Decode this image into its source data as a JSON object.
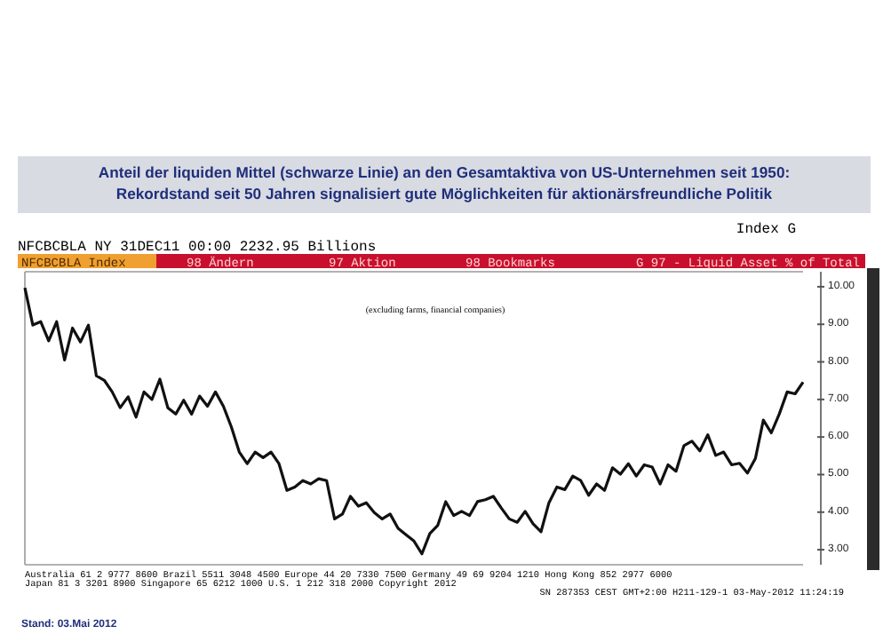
{
  "chart_data": {
    "type": "line",
    "title": "Anteil der liquiden Mittel (schwarze Linie) an den Gesamtaktiva von US-Unternehmen seit 1950:\nRekordstand seit 50 Jahren signalisiert gute Möglichkeiten für aktionärsfreundliche Politik",
    "subtitle": "G 97 - Liquid Asset % of Total",
    "categories": [
      null,
      null,
      null,
      null,
      null,
      null,
      null,
      null,
      null,
      null,
      null,
      null,
      null,
      null,
      null,
      null,
      null,
      null,
      null,
      null,
      null,
      null,
      null,
      null,
      null,
      null,
      null,
      null,
      null,
      null,
      null,
      null,
      null,
      null,
      null,
      null,
      null,
      null,
      null,
      null,
      null,
      null,
      null,
      null,
      null,
      null,
      null,
      null,
      null,
      null,
      null,
      null,
      null,
      null,
      null,
      null,
      null,
      null,
      null,
      null,
      null,
      null,
      null,
      null,
      null,
      null,
      null,
      null,
      null,
      null,
      null,
      null,
      null,
      null,
      null,
      null,
      null,
      null,
      null,
      null,
      null,
      null,
      null,
      null,
      null,
      null,
      null,
      null,
      null,
      null,
      null,
      null,
      null,
      null,
      null,
      null,
      null,
      null,
      null
    ],
    "series": [
      {
        "color": "#111111",
        "values": [
          9.97,
          8.98,
          9.07,
          8.56,
          9.07,
          8.05,
          8.9,
          8.53,
          8.98,
          7.63,
          7.51,
          7.2,
          6.78,
          7.07,
          6.53,
          7.2,
          7.0,
          7.54,
          6.78,
          6.61,
          6.98,
          6.61,
          7.09,
          6.82,
          7.2,
          6.82,
          6.27,
          5.6,
          5.29,
          5.6,
          5.45,
          5.6,
          5.29,
          4.58,
          4.67,
          4.84,
          4.75,
          4.89,
          4.84,
          3.82,
          3.95,
          4.42,
          4.16,
          4.25,
          3.99,
          3.82,
          3.95,
          3.57,
          3.4,
          3.23,
          2.89,
          3.43,
          3.65,
          4.28,
          3.91,
          4.02,
          3.91,
          4.28,
          4.33,
          4.42,
          4.11,
          3.82,
          3.73,
          4.02,
          3.69,
          3.48,
          4.25,
          4.67,
          4.6,
          4.96,
          4.84,
          4.45,
          4.75,
          4.58,
          5.18,
          5.01,
          5.29,
          4.96,
          5.26,
          5.2,
          4.75,
          5.26,
          5.09,
          5.77,
          5.89,
          5.63,
          6.06,
          5.51,
          5.6,
          5.26,
          5.3,
          5.04,
          5.43,
          6.45,
          6.11,
          6.61,
          7.2,
          7.15,
          7.46
        ]
      }
    ],
    "ylim": [
      2.6,
      10.4
    ],
    "yticks": [
      {
        "value": 3,
        "label": "3.00"
      },
      {
        "value": 4,
        "label": "4.00"
      },
      {
        "value": 5,
        "label": "5.00"
      },
      {
        "value": 6,
        "label": "6.00"
      },
      {
        "value": 7,
        "label": "7.00"
      },
      {
        "value": 8,
        "label": "8.00"
      },
      {
        "value": 9,
        "label": "9.00"
      },
      {
        "value": 10,
        "label": "10.00"
      }
    ],
    "tick_labels": "y",
    "grid": false,
    "marker": "none",
    "line_style": "solid",
    "annotations": [
      "(excluding farms, financial companies)",
      "NFCBCBLA     NY 31DEC11 00:00        2232.95 Billions",
      "Index G",
      "NFCBCBLA Index",
      "98 Ändern",
      "97 Aktion",
      "98 Bookmarks",
      "Australia 61 2 9777 8600 Brazil 5511 3048 4500 Europe 44 20 7330 7500 Germany 49 69 9204 1210 Hong Kong 852 2977 6000",
      "Japan 81 3 3201 8900    Singapore 65 6212 1000    U.S. 1 212 318 2000    Copyright 2012",
      "SN 287353 CEST GMT+2:00 H211-129-1 03-May-2012 11:24:19",
      "Stand: 03.Mai 2012"
    ]
  }
}
